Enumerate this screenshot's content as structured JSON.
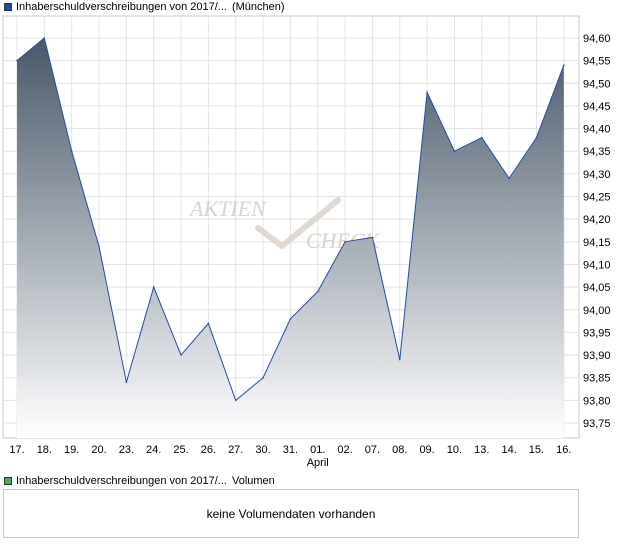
{
  "main_legend": {
    "series_name": "Inhaberschuldverschreibungen von 2017/...",
    "exchange": "(München)",
    "swatch_color": "#1f4fa0"
  },
  "volume_legend": {
    "series_name": "Inhaberschuldverschreibungen von 2017/...",
    "label": "Volumen",
    "swatch_color": "#4caf50"
  },
  "volume_panel": {
    "message": "keine Volumendaten vorhanden"
  },
  "watermark": {
    "line1": "AKTIEN",
    "line2": "CHECK"
  },
  "chart_data": {
    "type": "area",
    "categories": [
      "17.",
      "18.",
      "19.",
      "20.",
      "23.",
      "24.",
      "25.",
      "26.",
      "27.",
      "30.",
      "31.",
      "01.",
      "02.",
      "07.",
      "08.",
      "09.",
      "10.",
      "13.",
      "14.",
      "15.",
      "16."
    ],
    "month_label": "April",
    "month_label_under": "01.",
    "values": [
      94.55,
      94.6,
      94.35,
      94.14,
      93.84,
      94.05,
      93.9,
      93.97,
      93.8,
      93.85,
      93.98,
      94.04,
      94.15,
      94.16,
      93.89,
      94.48,
      94.35,
      94.38,
      94.29,
      94.38,
      94.54
    ],
    "y_ticks": [
      "93,75",
      "93,80",
      "93,85",
      "93,90",
      "93,95",
      "94,00",
      "94,05",
      "94,10",
      "94,15",
      "94,20",
      "94,25",
      "94,30",
      "94,35",
      "94,40",
      "94,45",
      "94,50",
      "94,55",
      "94,60"
    ],
    "ylim": [
      93.71,
      94.64
    ],
    "grid": true,
    "line_color": "#1f4fa0",
    "fill_top_color": "#48586a",
    "fill_bottom_color": "#ffffff"
  }
}
